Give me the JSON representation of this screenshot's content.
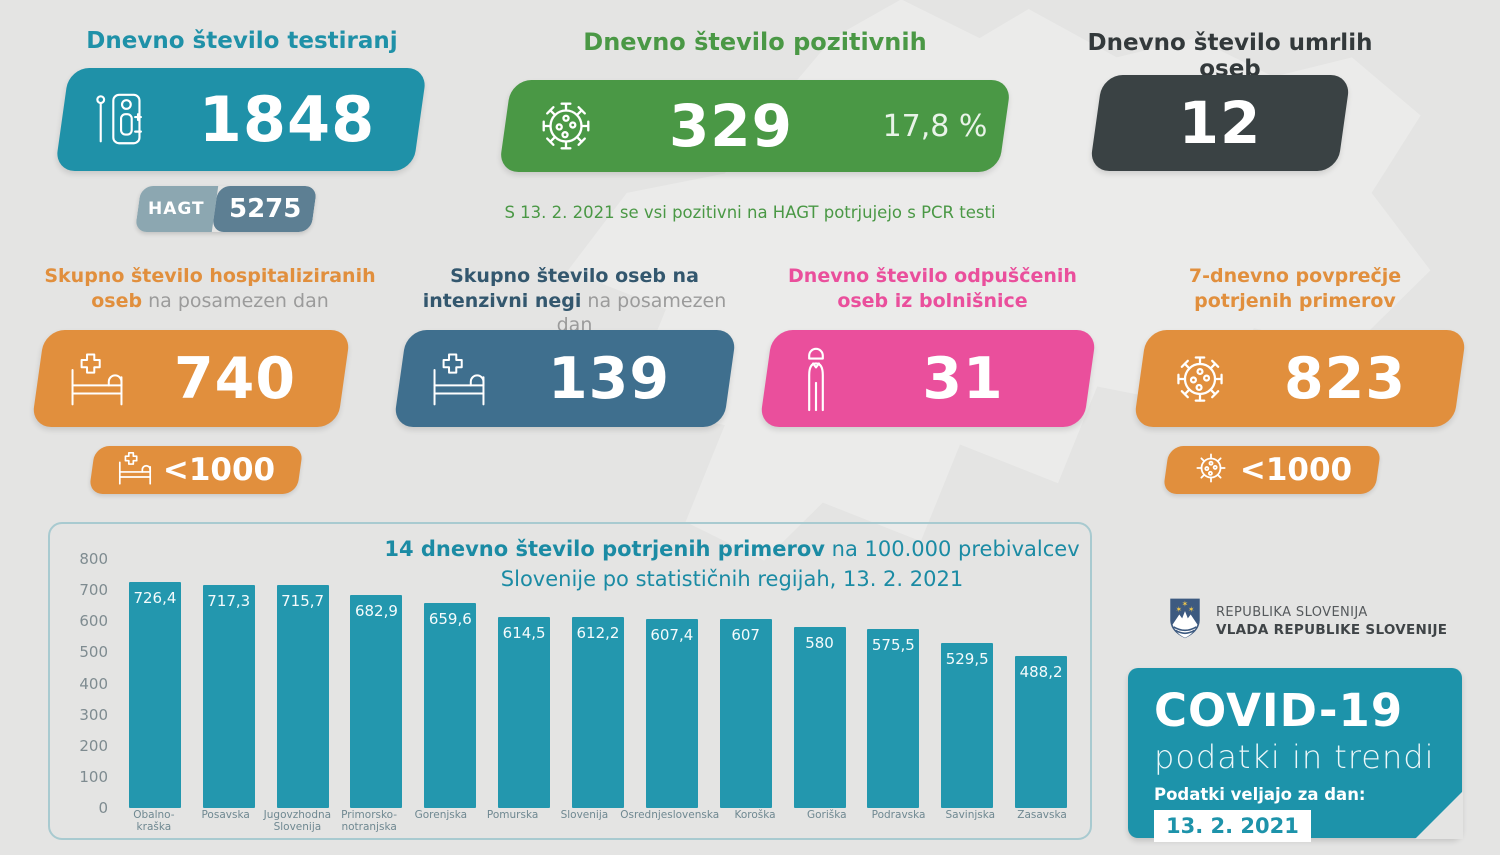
{
  "colors": {
    "background": "#e4e4e3",
    "teal": "#1f91a8",
    "green": "#4a9845",
    "dark": "#3a4244",
    "orange": "#e18f3d",
    "steel_blue": "#3f6f8e",
    "pink": "#ea4f9c",
    "bar_teal": "#2397ae",
    "hagt_left": "#8ca7b1",
    "hagt_right": "#5d7f93",
    "covid_card": "#1d93aa"
  },
  "top": {
    "testing": {
      "title": "Dnevno število testiranj",
      "value": "1848",
      "hagt_label": "HAGT",
      "hagt_value": "5275"
    },
    "positive": {
      "title": "Dnevno število pozitivnih",
      "value": "329",
      "percent": "17,8 %",
      "note": "S 13. 2. 2021 se vsi pozitivni na HAGT potrjujejo s PCR testi"
    },
    "deaths": {
      "title": "Dnevno število umrlih oseb",
      "value": "12"
    }
  },
  "mid": {
    "hospitalized": {
      "title_bold": "Skupno število hospitaliziranih oseb",
      "title_gray": " na posamezen dan",
      "value": "740",
      "badge": "<1000"
    },
    "icu": {
      "title_bold": "Skupno število oseb na intenzivni negi",
      "title_gray": " na posamezen dan",
      "value": "139"
    },
    "discharged": {
      "title_bold": "Dnevno število odpuščenih oseb iz bolnišnice",
      "value": "31"
    },
    "avg7": {
      "title_bold": "7-dnevno povprečje potrjenih primerov",
      "value": "823",
      "badge": "<1000"
    }
  },
  "chart_data": {
    "type": "bar",
    "title_bold": "14 dnevno število potrjenih primerov",
    "title_rest": " na 100.000 prebivalcev Slovenije po statističnih regijah, 13. 2. 2021",
    "categories": [
      "Obalno-kraška",
      "Posavska",
      "Jugovzhodna Slovenija",
      "Primorsko-notranjska",
      "Gorenjska",
      "Pomurska",
      "Slovenija",
      "Osrednjeslovenska",
      "Koroška",
      "Goriška",
      "Podravska",
      "Savinjska",
      "Zasavska"
    ],
    "values": [
      726.4,
      717.3,
      715.7,
      682.9,
      659.6,
      614.5,
      612.2,
      607.4,
      607,
      580,
      575.5,
      529.5,
      488.2
    ],
    "value_labels": [
      "726,4",
      "717,3",
      "715,7",
      "682,9",
      "659,6",
      "614,5",
      "612,2",
      "607,4",
      "607",
      "580",
      "575,5",
      "529,5",
      "488,2"
    ],
    "xlabel": "",
    "ylabel": "",
    "ylim": [
      0,
      800
    ],
    "yticks": [
      800,
      700,
      600,
      500,
      400,
      300,
      200,
      100,
      0
    ],
    "grid": false,
    "legend": "none",
    "bar_color": "#2397ae"
  },
  "footer": {
    "gov_line1": "REPUBLIKA SLOVENIJA",
    "gov_line2": "VLADA REPUBLIKE SLOVENIJE",
    "covid_title": "COVID-19",
    "covid_subtitle": "podatki in trendi",
    "covid_date_label": "Podatki veljajo za dan:",
    "covid_date": "13. 2. 2021"
  }
}
